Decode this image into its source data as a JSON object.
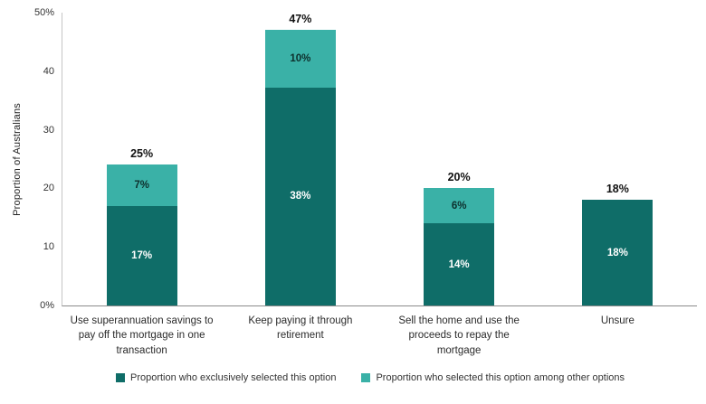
{
  "chart_data": {
    "type": "bar",
    "stacked": true,
    "title": "",
    "ylabel": "Proportion of Australians",
    "ymax": 50,
    "ylim": [
      0,
      50
    ],
    "grid": false,
    "legend_position": "bottom",
    "yticks": [
      "50%",
      "40",
      "30",
      "20",
      "10",
      "0%"
    ],
    "categories": [
      "Use superannuation savings to pay off the mortgage in one transaction",
      "Keep paying it through retirement",
      "Sell the home and use the proceeds to repay the mortgage",
      "Unsure"
    ],
    "series": [
      {
        "name": "Proportion who exclusively selected this option",
        "color": "#0f6d68",
        "values": [
          17,
          38,
          14,
          18
        ]
      },
      {
        "name": "Proportion who selected this option among other options",
        "color": "#3ab1a7",
        "values": [
          7,
          10,
          6,
          0
        ]
      }
    ],
    "totals": [
      25,
      47,
      20,
      18
    ],
    "bars": [
      {
        "category": "Use superannuation savings to pay off the mortgage in one transaction",
        "exclusive": 17,
        "exclusive_label": "17%",
        "among": 7,
        "among_label": "7%",
        "total_label": "25%"
      },
      {
        "category": "Keep paying it through retirement",
        "exclusive": 38,
        "exclusive_label": "38%",
        "among": 10,
        "among_label": "10%",
        "total_label": "47%"
      },
      {
        "category": "Sell the home and use the proceeds to repay the mortgage",
        "exclusive": 14,
        "exclusive_label": "14%",
        "among": 6,
        "among_label": "6%",
        "total_label": "20%"
      },
      {
        "category": "Unsure",
        "exclusive": 18,
        "exclusive_label": "18%",
        "among": 0,
        "among_label": "",
        "total_label": "18%"
      }
    ]
  },
  "legend": {
    "items": [
      {
        "label": "Proportion who exclusively selected this option",
        "color": "#0f6d68"
      },
      {
        "label": "Proportion who selected this option among other options",
        "color": "#3ab1a7"
      }
    ]
  }
}
